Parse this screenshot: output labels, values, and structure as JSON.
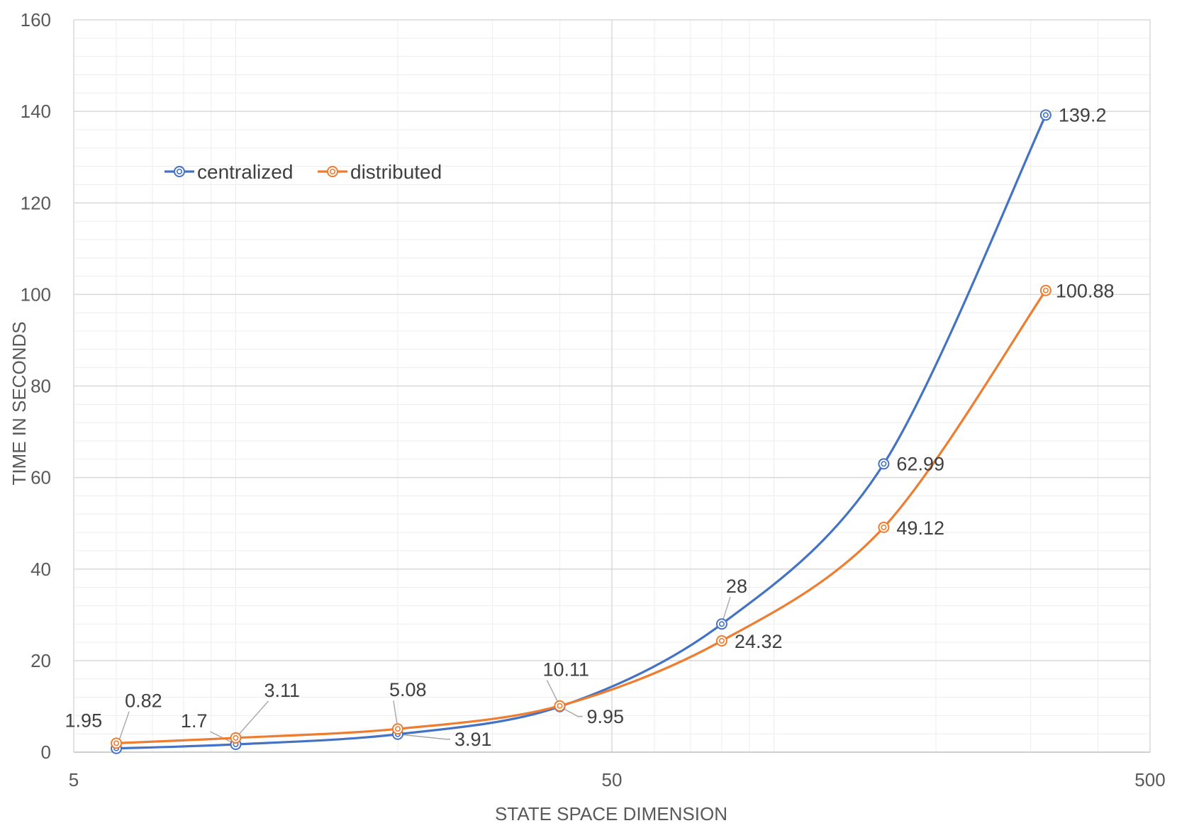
{
  "chart_data": {
    "type": "line",
    "xlabel": "STATE SPACE DIMENSION",
    "ylabel": "TIME IN SECONDS",
    "x_scale": "log",
    "xlim": [
      5,
      500
    ],
    "ylim": [
      0,
      160
    ],
    "x_ticks": [
      {
        "value": 5,
        "label": "5"
      },
      {
        "value": 50,
        "label": "50"
      },
      {
        "value": 500,
        "label": "500"
      }
    ],
    "y_ticks": [
      {
        "value": 0,
        "label": "0"
      },
      {
        "value": 20,
        "label": "20"
      },
      {
        "value": 40,
        "label": "40"
      },
      {
        "value": 60,
        "label": "60"
      },
      {
        "value": 80,
        "label": "80"
      },
      {
        "value": 100,
        "label": "100"
      },
      {
        "value": 120,
        "label": "120"
      },
      {
        "value": 140,
        "label": "140"
      },
      {
        "value": 160,
        "label": "160"
      }
    ],
    "grid": true,
    "legend_position": "top-left",
    "series": [
      {
        "name": "centralized",
        "color": "#4472C4",
        "x": [
          6,
          10,
          20,
          40,
          80,
          160,
          320
        ],
        "y": [
          0.82,
          1.7,
          3.91,
          9.95,
          28,
          62.99,
          139.2
        ],
        "labels": [
          "0.82",
          "1.7",
          "3.91",
          "9.95",
          "28",
          "62.99",
          "139.2"
        ]
      },
      {
        "name": "distributed",
        "color": "#ED7D31",
        "x": [
          6,
          10,
          20,
          40,
          80,
          160,
          320
        ],
        "y": [
          1.95,
          3.11,
          5.08,
          10.11,
          24.32,
          49.12,
          100.88
        ],
        "labels": [
          "1.95",
          "3.11",
          "5.08",
          "10.11",
          "24.32",
          "49.12",
          "100.88"
        ]
      }
    ]
  }
}
